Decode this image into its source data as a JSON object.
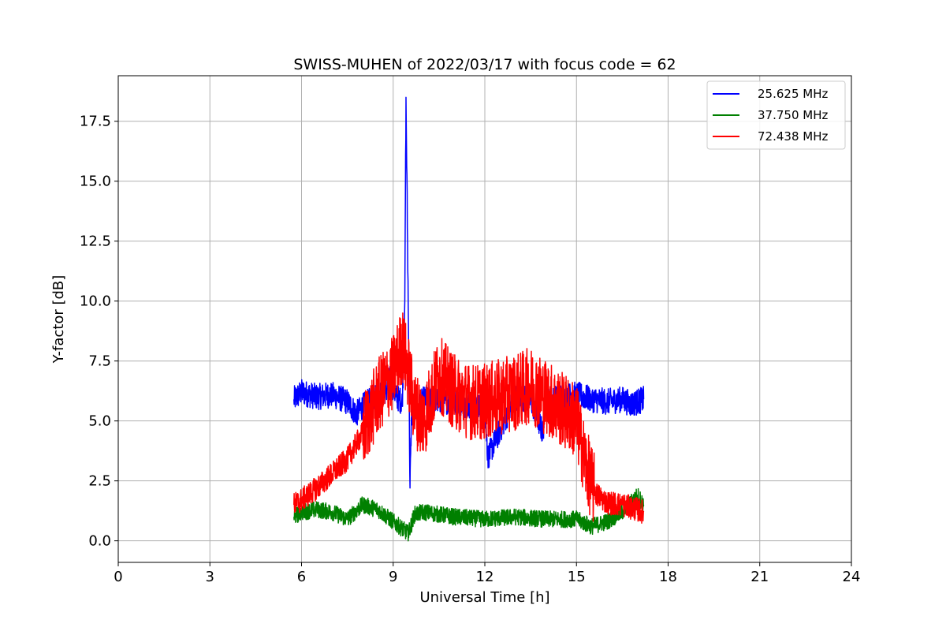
{
  "chart_data": {
    "type": "line",
    "title": "SWISS-MUHEN of 2022/03/17 with focus code = 62",
    "xlabel": "Universal Time [h]",
    "ylabel": "Y-factor [dB]",
    "xlim": [
      0,
      24
    ],
    "ylim": [
      -0.9,
      19.4
    ],
    "xticks": [
      0,
      3,
      6,
      9,
      12,
      15,
      18,
      21,
      24
    ],
    "yticks": [
      0.0,
      2.5,
      5.0,
      7.5,
      10.0,
      12.5,
      15.0,
      17.5
    ],
    "ytick_labels": [
      "0.0",
      "2.5",
      "5.0",
      "7.5",
      "10.0",
      "12.5",
      "15.0",
      "17.5"
    ],
    "grid": true,
    "legend_position": "top-right",
    "series": [
      {
        "name": "25.625 MHz",
        "color": "#0000ff",
        "x": [
          5.75,
          6.0,
          6.5,
          7.0,
          7.5,
          7.8,
          8.0,
          8.4,
          8.8,
          8.9,
          9.1,
          9.3,
          9.38,
          9.42,
          9.5,
          9.55,
          9.6,
          10.0,
          11.0,
          12.0,
          12.1,
          13.0,
          13.5,
          13.9,
          14.0,
          14.5,
          15.0,
          15.5,
          16.0,
          16.5,
          16.8,
          17.0,
          17.2
        ],
        "y": [
          5.9,
          6.2,
          6.0,
          6.1,
          5.8,
          5.3,
          5.6,
          6.0,
          6.3,
          6.8,
          6.0,
          5.8,
          10.0,
          18.5,
          9.0,
          2.2,
          5.2,
          5.9,
          5.8,
          5.5,
          3.5,
          6.0,
          5.9,
          4.5,
          5.8,
          6.0,
          6.1,
          5.9,
          5.8,
          5.9,
          5.7,
          5.8,
          5.9
        ]
      },
      {
        "name": "37.750 MHz",
        "color": "#008000",
        "x": [
          5.75,
          6.0,
          6.5,
          7.0,
          7.5,
          8.0,
          8.5,
          9.0,
          9.3,
          9.5,
          9.7,
          10.0,
          11.0,
          12.0,
          13.0,
          14.0,
          15.0,
          15.5,
          16.0,
          16.5,
          17.0,
          17.2
        ],
        "y": [
          1.0,
          1.2,
          1.3,
          1.2,
          0.9,
          1.5,
          1.3,
          0.8,
          0.5,
          0.3,
          1.1,
          1.2,
          1.0,
          0.9,
          1.0,
          0.9,
          0.9,
          0.6,
          0.8,
          1.2,
          1.9,
          1.5
        ]
      },
      {
        "name": "72.438 MHz",
        "color": "#ff0000",
        "x": [
          5.75,
          6.0,
          6.5,
          7.0,
          7.5,
          8.0,
          8.5,
          9.0,
          9.3,
          9.5,
          9.7,
          10.0,
          10.5,
          11.0,
          11.5,
          12.0,
          12.5,
          13.0,
          13.5,
          14.0,
          14.5,
          15.0,
          15.3,
          15.6,
          16.0,
          16.5,
          17.0,
          17.2
        ],
        "y": [
          1.5,
          1.7,
          2.2,
          2.8,
          3.4,
          4.5,
          6.0,
          7.0,
          8.2,
          7.0,
          5.5,
          5.0,
          7.0,
          6.2,
          5.8,
          5.8,
          6.0,
          6.2,
          6.5,
          6.0,
          5.5,
          5.0,
          3.2,
          2.0,
          1.6,
          1.5,
          1.3,
          1.2
        ]
      }
    ]
  }
}
